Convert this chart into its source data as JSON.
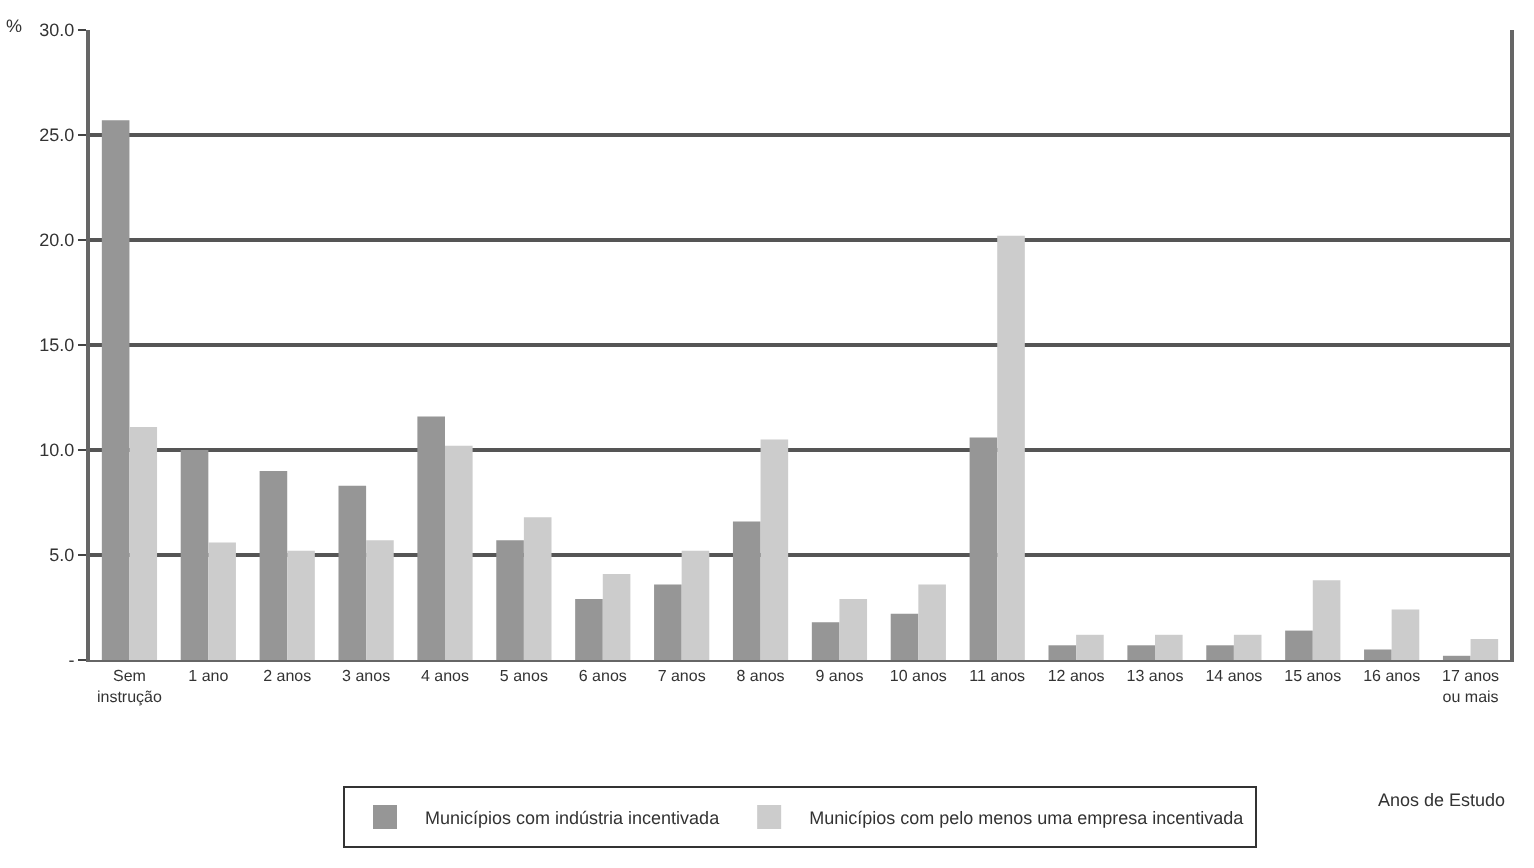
{
  "chart_data": {
    "type": "bar",
    "ylabel": "%",
    "xlabel": "Anos de Estudo",
    "categories": [
      "Sem instrução",
      "1 ano",
      "2 anos",
      "3 anos",
      "4 anos",
      "5 anos",
      "6 anos",
      "7 anos",
      "8 anos",
      "9 anos",
      "10 anos",
      "11 anos",
      "12 anos",
      "13 anos",
      "14 anos",
      "15 anos",
      "16 anos",
      "17 anos ou mais"
    ],
    "series": [
      {
        "name": "Municípios com indústria incentivada",
        "color": "#969696",
        "values": [
          25.7,
          10.0,
          9.0,
          8.3,
          11.6,
          5.7,
          2.9,
          3.6,
          6.6,
          1.8,
          2.2,
          10.6,
          0.7,
          0.7,
          0.7,
          1.4,
          0.5,
          0.2
        ]
      },
      {
        "name": "Municípios com pelo menos uma empresa incentivada",
        "color": "#cccccc",
        "values": [
          11.1,
          5.6,
          5.2,
          5.7,
          10.2,
          6.8,
          4.1,
          5.2,
          10.5,
          2.9,
          3.6,
          20.2,
          1.2,
          1.2,
          1.2,
          3.8,
          2.4,
          1.0
        ]
      }
    ],
    "ylim": [
      0,
      30
    ],
    "yticks": [
      {
        "value": 0,
        "label": "-"
      },
      {
        "value": 5,
        "label": "5.0"
      },
      {
        "value": 10,
        "label": "10.0"
      },
      {
        "value": 15,
        "label": "15.0"
      },
      {
        "value": 20,
        "label": "20.0"
      },
      {
        "value": 25,
        "label": "25.0"
      },
      {
        "value": 30,
        "label": "30.0"
      }
    ],
    "grid": "y",
    "legend": "bottom"
  }
}
